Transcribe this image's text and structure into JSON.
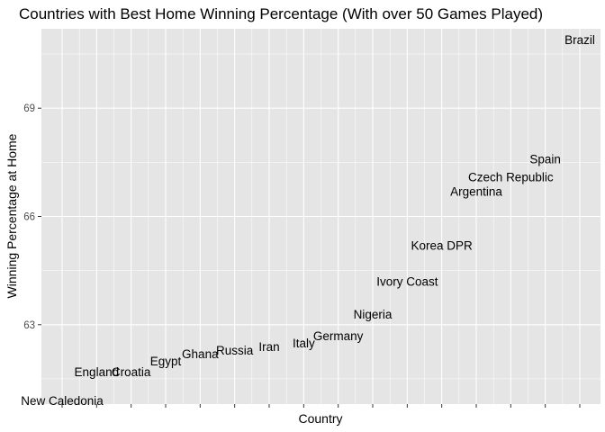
{
  "chart_data": {
    "type": "scatter",
    "title": "Countries with Best Home Winning Percentage (With over 50 Games Played)",
    "xlabel": "Country",
    "ylabel": "Winning Percentage at Home",
    "y_ticks": [
      "63",
      "66",
      "69"
    ],
    "y_tick_values": [
      63,
      66,
      69
    ],
    "x_tick_labels_shown": false,
    "ylim": [
      60.8,
      71.2
    ],
    "xlim": [
      0.4,
      16.6
    ],
    "grid": true,
    "legend": "none",
    "background": "#e5e5e5",
    "grid_color": "#ffffff",
    "points": [
      {
        "label": "New Caledonia",
        "x": 1,
        "y": 60.9
      },
      {
        "label": "England",
        "x": 2,
        "y": 61.7
      },
      {
        "label": "Croatia",
        "x": 3,
        "y": 61.7
      },
      {
        "label": "Egypt",
        "x": 4,
        "y": 62.0
      },
      {
        "label": "Ghana",
        "x": 5,
        "y": 62.2
      },
      {
        "label": "Russia",
        "x": 6,
        "y": 62.3
      },
      {
        "label": "Iran",
        "x": 7,
        "y": 62.4
      },
      {
        "label": "Italy",
        "x": 8,
        "y": 62.5
      },
      {
        "label": "Germany",
        "x": 9,
        "y": 62.7
      },
      {
        "label": "Nigeria",
        "x": 10,
        "y": 63.3
      },
      {
        "label": "Ivory Coast",
        "x": 11,
        "y": 64.2
      },
      {
        "label": "Korea DPR",
        "x": 12,
        "y": 65.2
      },
      {
        "label": "Argentina",
        "x": 13,
        "y": 66.7
      },
      {
        "label": "Czech Republic",
        "x": 14,
        "y": 67.1
      },
      {
        "label": "Spain",
        "x": 15,
        "y": 67.6
      },
      {
        "label": "Brazil",
        "x": 16,
        "y": 70.9
      }
    ]
  }
}
